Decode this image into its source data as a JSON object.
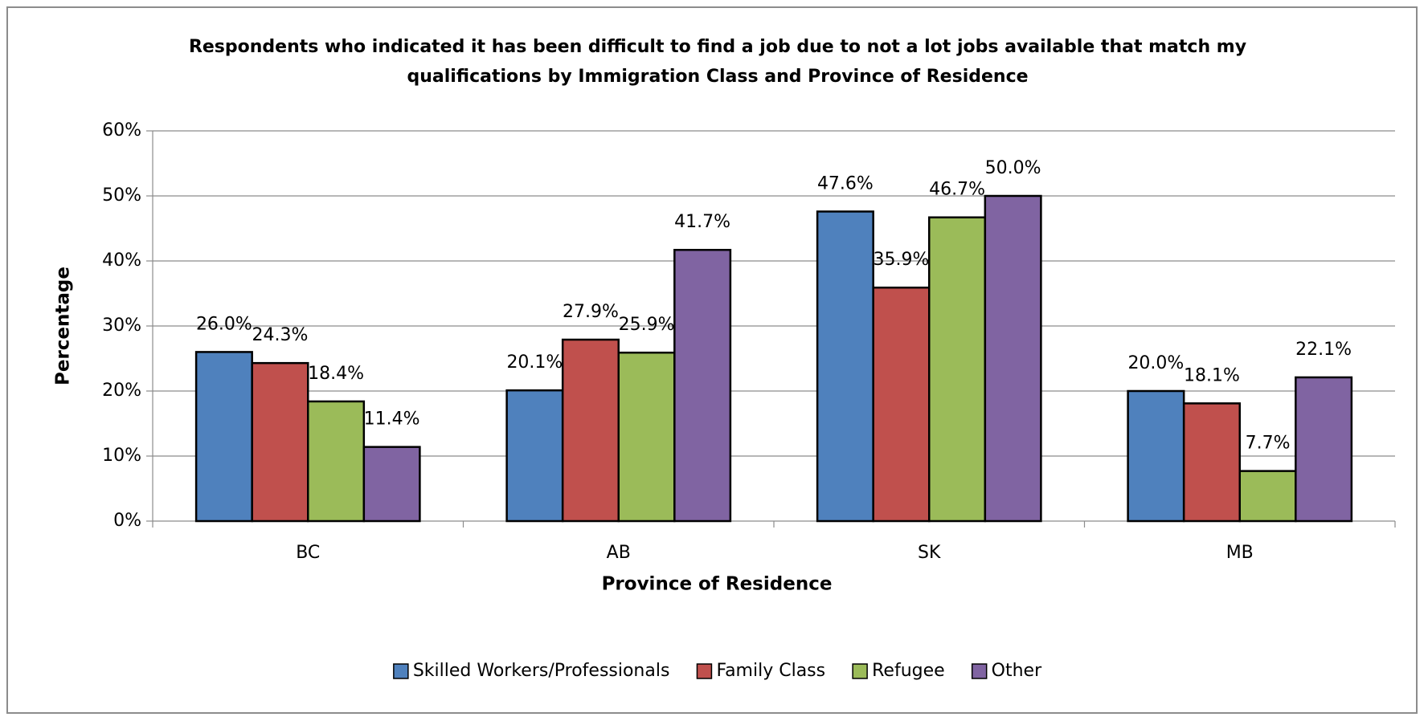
{
  "chart_data": {
    "type": "bar",
    "title": [
      "Respondents who indicated it has been difficult to find a job due to not a lot jobs available that match my",
      "qualifications by Immigration Class and Province of Residence"
    ],
    "x_label": "Province of Residence",
    "y_label": "Percentage",
    "categories": [
      "BC",
      "AB",
      "SK",
      "MB"
    ],
    "series": [
      {
        "name": "Skilled Workers/Professionals",
        "color": "#4f81bd",
        "values": [
          26.0,
          20.1,
          47.6,
          20.0
        ],
        "value_labels": [
          "26.0%",
          "20.1%",
          "47.6%",
          "20.0%"
        ]
      },
      {
        "name": "Family Class",
        "color": "#c0504d",
        "values": [
          24.3,
          27.9,
          35.9,
          18.1
        ],
        "value_labels": [
          "24.3%",
          "27.9%",
          "35.9%",
          "18.1%"
        ]
      },
      {
        "name": "Refugee",
        "color": "#9bbb59",
        "values": [
          18.4,
          25.9,
          46.7,
          7.7
        ],
        "value_labels": [
          "18.4%",
          "25.9%",
          "46.7%",
          "7.7%"
        ]
      },
      {
        "name": "Other",
        "color": "#8064a2",
        "values": [
          11.4,
          41.7,
          50.0,
          22.1
        ],
        "value_labels": [
          "11.4%",
          "41.7%",
          "50.0%",
          "22.1%"
        ]
      }
    ],
    "ylim": [
      0,
      60
    ],
    "yticks": [
      {
        "value": 0,
        "label": "0%"
      },
      {
        "value": 10,
        "label": "10%"
      },
      {
        "value": 20,
        "label": "20%"
      },
      {
        "value": 30,
        "label": "30%"
      },
      {
        "value": 40,
        "label": "40%"
      },
      {
        "value": 50,
        "label": "50%"
      },
      {
        "value": 60,
        "label": "60%"
      }
    ],
    "grid": true,
    "legend": "bottom"
  }
}
